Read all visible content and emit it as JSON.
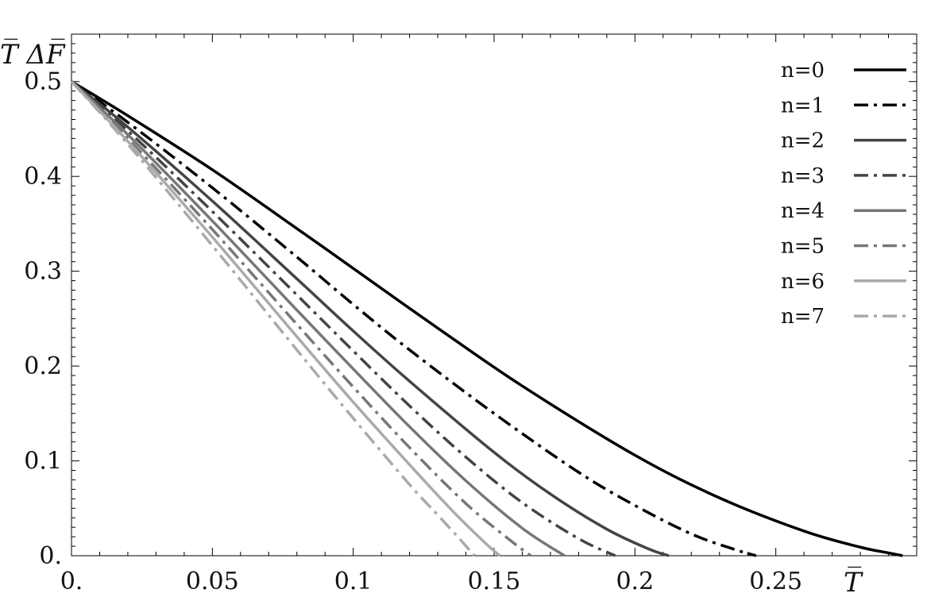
{
  "chart_data": {
    "type": "line",
    "title": "",
    "xlabel": "T̅",
    "ylabel": "T̅ ΔF̅",
    "xlim": [
      0,
      0.3
    ],
    "ylim": [
      0,
      0.55
    ],
    "grid": false,
    "legend_position": "top-right",
    "xticks": [
      0,
      0.05,
      0.1,
      0.15,
      0.2,
      0.25
    ],
    "xtick_labels": [
      "0.",
      "0.05",
      "0.1",
      "0.15",
      "0.2",
      "0.25"
    ],
    "yticks": [
      0,
      0.1,
      0.2,
      0.3,
      0.4,
      0.5
    ],
    "ytick_labels": [
      "0.",
      "0.1",
      "0.2",
      "0.3",
      "0.4",
      "0.5"
    ],
    "series": [
      {
        "name": "n=0",
        "color": "#000000",
        "dash": "solid",
        "x": [
          0,
          0.02,
          0.05,
          0.08,
          0.1,
          0.13,
          0.16,
          0.2,
          0.23,
          0.26,
          0.28,
          0.29,
          0.295
        ],
        "y": [
          0.5,
          0.464,
          0.407,
          0.345,
          0.303,
          0.24,
          0.179,
          0.106,
          0.061,
          0.026,
          0.009,
          0.003,
          0.0
        ]
      },
      {
        "name": "n=1",
        "color": "#000000",
        "dash": "dashdot",
        "x": [
          0,
          0.02,
          0.05,
          0.08,
          0.1,
          0.12,
          0.15,
          0.18,
          0.2,
          0.22,
          0.235,
          0.243
        ],
        "y": [
          0.5,
          0.457,
          0.388,
          0.315,
          0.265,
          0.217,
          0.15,
          0.088,
          0.053,
          0.023,
          0.007,
          0.0
        ]
      },
      {
        "name": "n=2",
        "color": "#444444",
        "dash": "solid",
        "x": [
          0,
          0.02,
          0.05,
          0.08,
          0.1,
          0.12,
          0.15,
          0.17,
          0.19,
          0.205,
          0.212
        ],
        "y": [
          0.5,
          0.452,
          0.374,
          0.292,
          0.237,
          0.184,
          0.109,
          0.065,
          0.028,
          0.007,
          0.0
        ]
      },
      {
        "name": "n=3",
        "color": "#444444",
        "dash": "dashdot",
        "x": [
          0,
          0.02,
          0.05,
          0.08,
          0.1,
          0.12,
          0.14,
          0.16,
          0.18,
          0.193
        ],
        "y": [
          0.5,
          0.448,
          0.363,
          0.275,
          0.216,
          0.158,
          0.104,
          0.056,
          0.018,
          0.0
        ]
      },
      {
        "name": "n=4",
        "color": "#777777",
        "dash": "solid",
        "x": [
          0,
          0.02,
          0.05,
          0.08,
          0.1,
          0.12,
          0.14,
          0.16,
          0.175
        ],
        "y": [
          0.5,
          0.444,
          0.353,
          0.259,
          0.197,
          0.136,
          0.079,
          0.029,
          0.0
        ]
      },
      {
        "name": "n=5",
        "color": "#777777",
        "dash": "dashdot",
        "x": [
          0,
          0.02,
          0.05,
          0.08,
          0.1,
          0.12,
          0.14,
          0.155,
          0.163
        ],
        "y": [
          0.5,
          0.44,
          0.344,
          0.244,
          0.178,
          0.114,
          0.055,
          0.018,
          0.0
        ]
      },
      {
        "name": "n=6",
        "color": "#aaaaaa",
        "dash": "solid",
        "x": [
          0,
          0.02,
          0.05,
          0.08,
          0.1,
          0.12,
          0.135,
          0.147,
          0.152
        ],
        "y": [
          0.5,
          0.437,
          0.336,
          0.231,
          0.162,
          0.096,
          0.048,
          0.013,
          0.0
        ]
      },
      {
        "name": "n=7",
        "color": "#aaaaaa",
        "dash": "dashdot",
        "x": [
          0,
          0.02,
          0.05,
          0.08,
          0.1,
          0.12,
          0.13,
          0.138,
          0.143
        ],
        "y": [
          0.5,
          0.434,
          0.327,
          0.217,
          0.145,
          0.075,
          0.043,
          0.017,
          0.0
        ]
      }
    ]
  }
}
